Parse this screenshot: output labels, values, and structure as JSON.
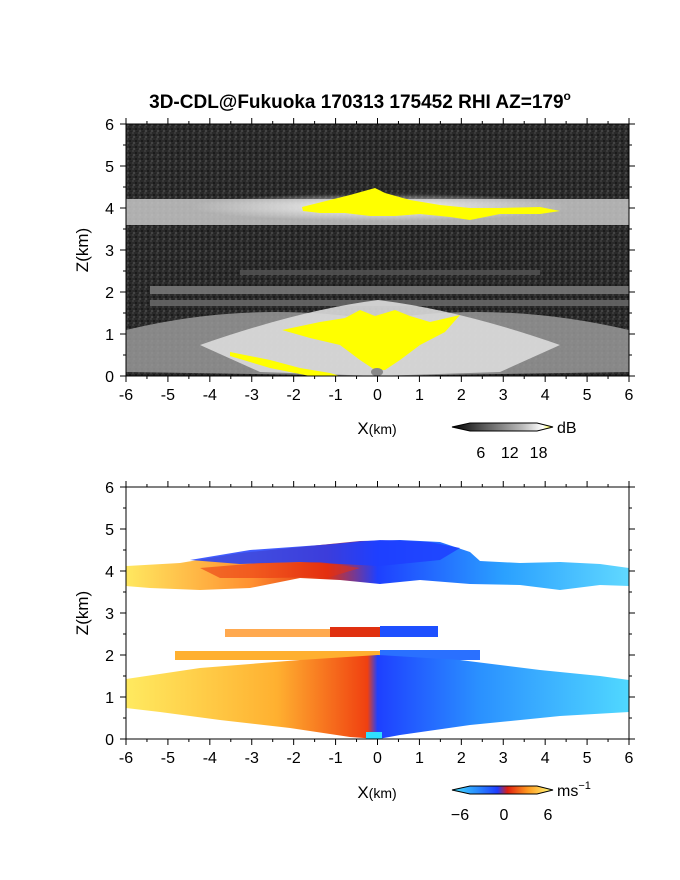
{
  "title": "3D-CDL@Fukuoka 170313 175452 RHI AZ=179",
  "title_superscript": "o",
  "chart_data": [
    {
      "type": "heatmap",
      "name": "reflectivity",
      "xlabel_main": "X",
      "xlabel_unit": "(km)",
      "ylabel": "Z(km)",
      "xlim": [
        -6,
        6
      ],
      "ylim": [
        0,
        6
      ],
      "xticks": [
        "-6",
        "-5",
        "-4",
        "-3",
        "-2",
        "-1",
        "0",
        "1",
        "2",
        "3",
        "4",
        "5",
        "6"
      ],
      "yticks": [
        "0",
        "1",
        "2",
        "3",
        "4",
        "5",
        "6"
      ],
      "colorbar": {
        "unit": "dB",
        "ticks": [
          "6",
          "12",
          "18"
        ],
        "tick_values": [
          6,
          12,
          18
        ],
        "range": [
          0,
          21
        ]
      },
      "colors": {
        "background": "#2e2e2e",
        "high": "#ffff00"
      },
      "layers": [
        {
          "z": 4.0,
          "thickness": 0.35,
          "x_from": -6,
          "x_to": 6,
          "level": "strong"
        },
        {
          "z": 2.0,
          "thickness": 0.15,
          "x_from": -5.5,
          "x_to": 6,
          "level": "medium"
        },
        {
          "z": 1.7,
          "thickness": 0.12,
          "x_from": -5.5,
          "x_to": 6,
          "level": "medium"
        },
        {
          "z": 0.9,
          "thickness": 0.9,
          "x_from": -6,
          "x_to": 6,
          "level": "strong"
        }
      ],
      "saturated_regions": [
        {
          "x_from": -1.8,
          "x_to": 4.3,
          "z_from": 3.8,
          "z_to": 4.3
        },
        {
          "x_from": -2.3,
          "x_to": 2.0,
          "z_from": 0.1,
          "z_to": 1.5
        },
        {
          "x_from": -3.5,
          "x_to": -1.0,
          "z_from": 0.0,
          "z_to": 0.5
        }
      ]
    },
    {
      "type": "heatmap",
      "name": "doppler_velocity",
      "xlabel_main": "X",
      "xlabel_unit": "(km)",
      "ylabel": "Z(km)",
      "xlim": [
        -6,
        6
      ],
      "ylim": [
        0,
        6
      ],
      "xticks": [
        "-6",
        "-5",
        "-4",
        "-3",
        "-2",
        "-1",
        "0",
        "1",
        "2",
        "3",
        "4",
        "5",
        "6"
      ],
      "yticks": [
        "0",
        "1",
        "2",
        "3",
        "4",
        "5",
        "6"
      ],
      "colorbar": {
        "unit": "ms",
        "unit_exponent": "−1",
        "ticks": [
          "−6",
          "0",
          "6"
        ],
        "tick_values": [
          -6,
          0,
          6
        ],
        "range": [
          -9,
          9
        ]
      },
      "colors": {
        "negative": "#1e64ff",
        "negative_far": "#3cc8ff",
        "zero": "#e02010",
        "positive": "#ffd040",
        "positive_far": "#fff080"
      },
      "layers": [
        {
          "z_from": 0.0,
          "z_to": 1.4,
          "x_from": -6,
          "x_to": 6,
          "velocity_left": 5,
          "velocity_right": -5
        },
        {
          "z_from": 1.8,
          "z_to": 2.1,
          "x_from": -5,
          "x_to": 3.5,
          "velocity_left": 3,
          "velocity_right": -4
        },
        {
          "z_from": 2.4,
          "z_to": 2.6,
          "x_from": -4.5,
          "x_to": 1.5,
          "velocity_left": 2,
          "velocity_right": -3
        },
        {
          "z_from": 3.7,
          "z_to": 4.5,
          "x_from": -6,
          "x_to": 6,
          "velocity_left": 5,
          "velocity_right": -6
        }
      ]
    }
  ]
}
